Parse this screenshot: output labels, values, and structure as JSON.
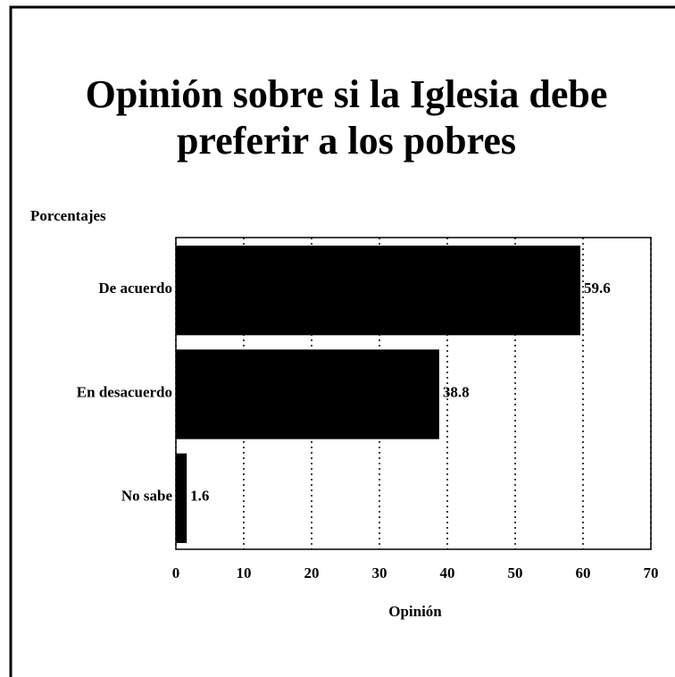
{
  "chart_data": {
    "type": "hbar",
    "title": "Opinión sobre si la Iglesia debe preferir a los pobres",
    "y_label": "Porcentajes",
    "x_label": "Opinión",
    "categories": [
      "De acuerdo",
      "En desacuerdo",
      "No sabe"
    ],
    "values": [
      59.6,
      38.8,
      1.6
    ],
    "color": "#000000",
    "xlim": [
      0,
      70
    ],
    "xticks": [
      0,
      10,
      20,
      30,
      40,
      50,
      60,
      70
    ],
    "grid": true
  }
}
